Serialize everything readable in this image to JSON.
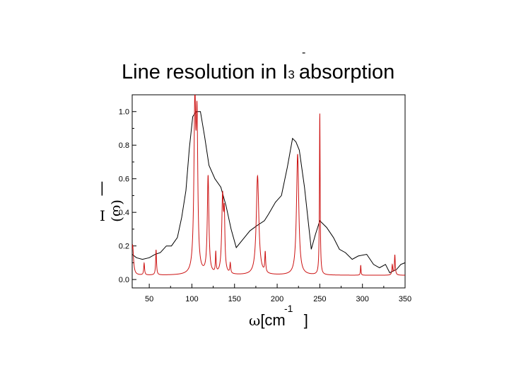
{
  "title": {
    "main": "Line resolution in I",
    "subscript": "3",
    "superscript": "-",
    "rest": "absorption"
  },
  "chart_data": {
    "type": "line",
    "xlabel": "ω[cm -1]",
    "xlabel_parts": {
      "symbol": "ω",
      "open": "[cm",
      "exp": "-1",
      "close": "]"
    },
    "ylabel": "I(ω)",
    "ylabel_parts": {
      "bar": "|",
      "i": "I",
      "paren": "(ω)"
    },
    "xlim": [
      30,
      350
    ],
    "ylim": [
      -0.05,
      1.1
    ],
    "x_ticks": [
      50,
      100,
      150,
      200,
      250,
      300,
      350
    ],
    "x_tick_labels": [
      "50",
      "100",
      "150",
      "200",
      "250",
      "300",
      "350"
    ],
    "y_ticks": [
      0.0,
      0.2,
      0.4,
      0.6,
      0.8,
      1.0
    ],
    "y_tick_labels": [
      "0.0",
      "0.2",
      "0.4",
      "0.6",
      "0.8",
      "1.0"
    ],
    "grid": false,
    "colors": {
      "series1": "#000000",
      "series2": "#cc1111"
    },
    "series": [
      {
        "style": "polyline",
        "x": [
          30,
          35,
          42,
          50,
          57,
          63,
          70,
          76,
          83,
          88,
          93,
          97,
          101,
          105,
          110,
          115,
          120,
          127,
          134,
          140,
          146,
          152,
          160,
          168,
          176,
          185,
          190,
          198,
          205,
          212,
          218,
          222,
          226,
          232,
          240,
          245,
          250,
          258,
          266,
          273,
          280,
          288,
          295,
          305,
          313,
          320,
          327,
          332,
          340,
          345,
          350
        ],
        "y": [
          0.15,
          0.13,
          0.12,
          0.13,
          0.15,
          0.16,
          0.2,
          0.2,
          0.25,
          0.37,
          0.53,
          0.78,
          0.97,
          1.0,
          1.0,
          0.85,
          0.68,
          0.6,
          0.55,
          0.44,
          0.3,
          0.19,
          0.24,
          0.29,
          0.32,
          0.35,
          0.39,
          0.46,
          0.5,
          0.67,
          0.84,
          0.82,
          0.77,
          0.55,
          0.18,
          0.27,
          0.35,
          0.31,
          0.25,
          0.18,
          0.16,
          0.12,
          0.14,
          0.15,
          0.09,
          0.07,
          0.09,
          0.04,
          0.06,
          0.09,
          0.1
        ]
      },
      {
        "style": "lorentzian",
        "baseline": 0.025,
        "peaks": [
          {
            "x": 30.5,
            "h": 0.18,
            "w": 1.2
          },
          {
            "x": 44,
            "h": 0.07,
            "w": 0.6
          },
          {
            "x": 58,
            "h": 0.15,
            "w": 0.6
          },
          {
            "x": 103.5,
            "h": 0.97,
            "w": 1.3
          },
          {
            "x": 106,
            "h": 0.82,
            "w": 1.1
          },
          {
            "x": 119,
            "h": 0.58,
            "w": 1.1
          },
          {
            "x": 128,
            "h": 0.12,
            "w": 0.5
          },
          {
            "x": 136,
            "h": 0.45,
            "w": 1.2
          },
          {
            "x": 138,
            "h": 0.3,
            "w": 0.8
          },
          {
            "x": 145,
            "h": 0.06,
            "w": 0.6
          },
          {
            "x": 177,
            "h": 0.59,
            "w": 1.8
          },
          {
            "x": 186,
            "h": 0.12,
            "w": 0.6
          },
          {
            "x": 224,
            "h": 0.72,
            "w": 1.6
          },
          {
            "x": 250,
            "h": 0.96,
            "w": 0.5
          },
          {
            "x": 298,
            "h": 0.06,
            "w": 0.4
          },
          {
            "x": 335,
            "h": 0.06,
            "w": 0.6
          },
          {
            "x": 338,
            "h": 0.12,
            "w": 0.6
          }
        ]
      }
    ]
  }
}
